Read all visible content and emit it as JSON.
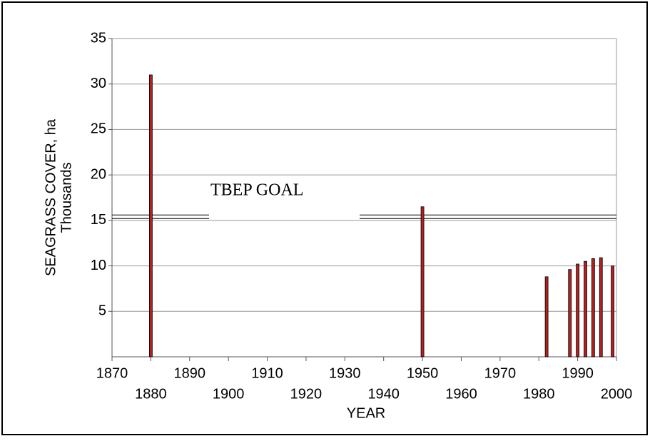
{
  "chart_data": {
    "type": "bar",
    "x_label": "YEAR",
    "y_label": "SEAGRASS COVER, ha",
    "y_label_2": "Thousands",
    "annotation": "TBEP GOAL",
    "goal": 15.4,
    "x": [
      1880,
      1950,
      1982,
      1988,
      1990,
      1992,
      1994,
      1996,
      1999
    ],
    "values": [
      31,
      16.5,
      8.8,
      9.6,
      10.2,
      10.5,
      10.8,
      10.9,
      10.0
    ],
    "color": "#b22222",
    "xlim": [
      1870,
      2000
    ],
    "xticks": [
      1870,
      1880,
      1890,
      1900,
      1910,
      1920,
      1930,
      1940,
      1950,
      1960,
      1970,
      1980,
      1990,
      2000
    ],
    "ylim": [
      0,
      35
    ],
    "yticks": [
      5,
      10,
      15,
      20,
      25,
      30,
      35
    ],
    "grid": true
  }
}
